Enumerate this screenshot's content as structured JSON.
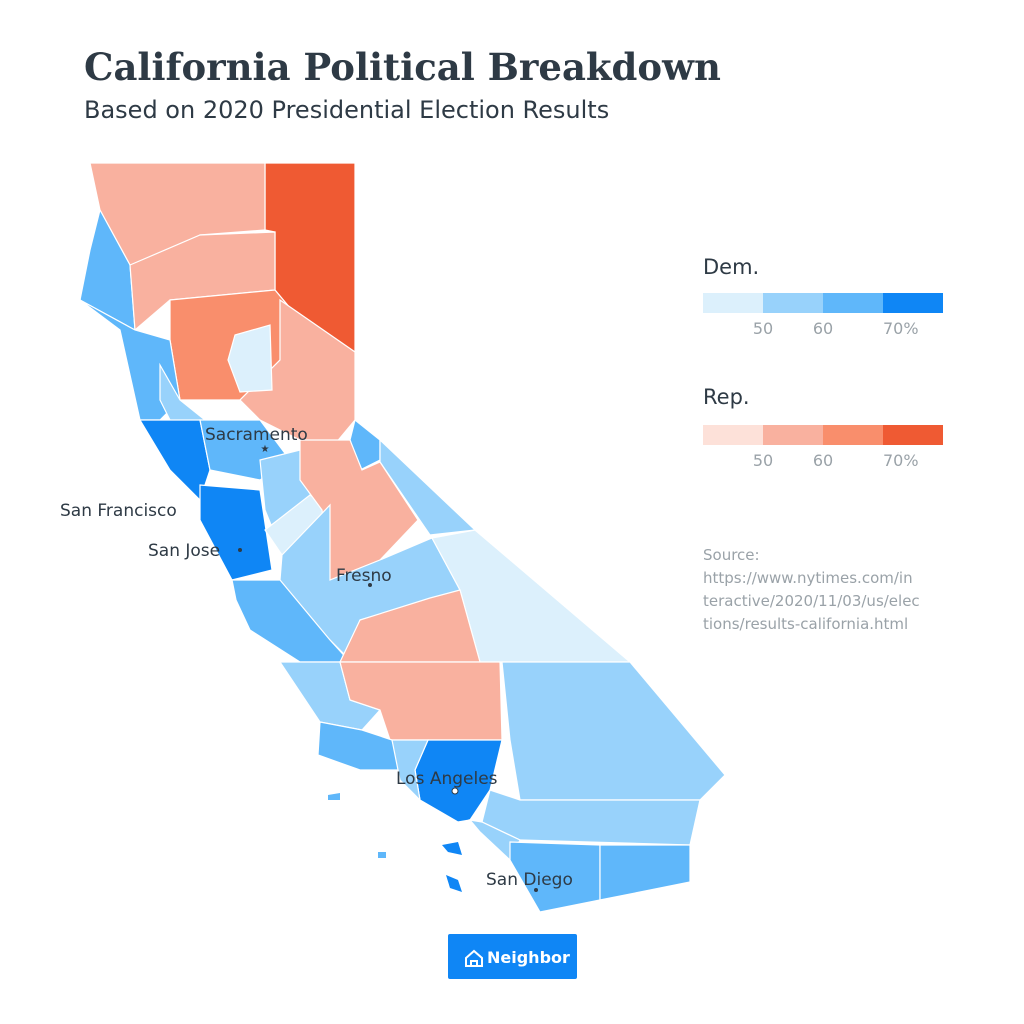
{
  "title": "California Political Breakdown",
  "subtitle": "Based on 2020 Presidential Election Results",
  "legend": {
    "dem": {
      "title": "Dem.",
      "colors": [
        "#dcf0fc",
        "#98d2fb",
        "#5fb7fa",
        "#0f86f5"
      ],
      "ticks": [
        50,
        60,
        {
          "value": 70,
          "label": "70%"
        }
      ]
    },
    "rep": {
      "title": "Rep.",
      "colors": [
        "#fde1d9",
        "#f9b19f",
        "#f98e6c",
        "#ef5a33"
      ],
      "ticks": [
        50,
        60,
        {
          "value": 70,
          "label": "70%"
        }
      ]
    }
  },
  "source": [
    "Source:",
    "https://www.nytimes.com/in",
    "teractive/2020/11/03/us/elec",
    "tions/results-california.html"
  ],
  "cities": [
    "Sacramento",
    "San Francisco",
    "San Jose",
    "Fresno",
    "Los Angeles",
    "San Diego"
  ],
  "brand": "Neighbor"
}
